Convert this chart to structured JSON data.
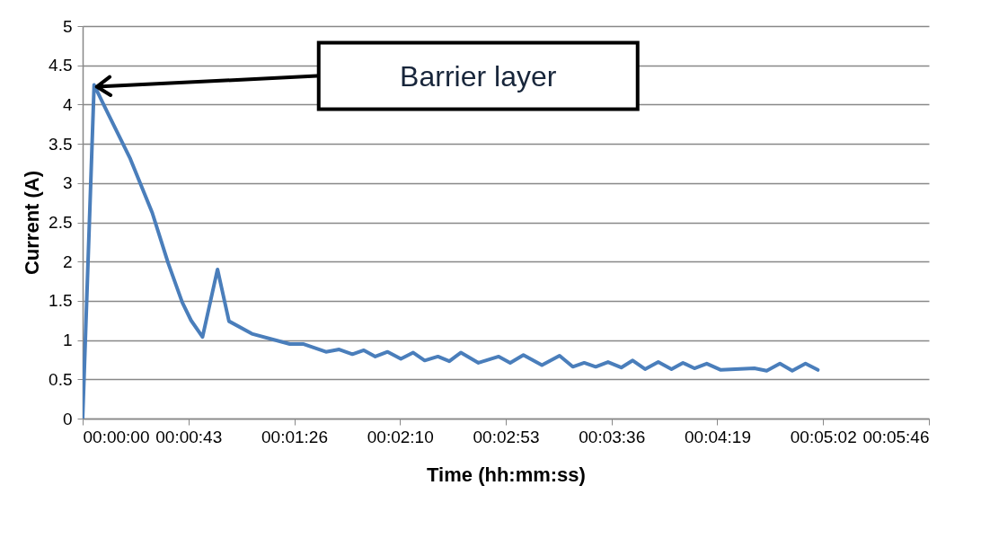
{
  "chart_data": {
    "type": "line",
    "xlabel": "Time  (hh:mm:ss)",
    "ylabel": "Current (A)",
    "x": [
      0,
      0.0013,
      0.0029,
      0.0054,
      0.0079,
      0.0097,
      0.0113,
      0.0123,
      0.0136,
      0.0153,
      0.0166,
      0.0192,
      0.0235,
      0.025,
      0.0276,
      0.0291,
      0.0306,
      0.0319,
      0.0332,
      0.0346,
      0.0361,
      0.0375,
      0.0388,
      0.0403,
      0.0416,
      0.0429,
      0.0449,
      0.0472,
      0.0485,
      0.05,
      0.0521,
      0.0541,
      0.0556,
      0.0569,
      0.0582,
      0.0596,
      0.0611,
      0.0624,
      0.0638,
      0.0653,
      0.0668,
      0.0681,
      0.0694,
      0.0708,
      0.0724,
      0.0762,
      0.0776,
      0.0791,
      0.0805,
      0.082,
      0.0834
    ],
    "series": [
      {
        "color": "#4a7ebb",
        "values": [
          0,
          4.25,
          3.88,
          3.31,
          2.62,
          1.98,
          1.48,
          1.25,
          1.04,
          1.9,
          1.24,
          1.08,
          0.95,
          0.95,
          0.85,
          0.88,
          0.82,
          0.87,
          0.79,
          0.85,
          0.76,
          0.84,
          0.74,
          0.79,
          0.73,
          0.84,
          0.71,
          0.79,
          0.71,
          0.81,
          0.68,
          0.8,
          0.66,
          0.71,
          0.66,
          0.72,
          0.65,
          0.74,
          0.63,
          0.72,
          0.63,
          0.71,
          0.64,
          0.7,
          0.62,
          0.64,
          0.61,
          0.7,
          0.61,
          0.7,
          0.62
        ]
      }
    ],
    "xlim": [
      0,
      0.096
    ],
    "xticks": [
      {
        "value": 0,
        "label": "00:00:00"
      },
      {
        "value": 0.012,
        "label": "00:00:43"
      },
      {
        "value": 0.024,
        "label": "00:01:26"
      },
      {
        "value": 0.036,
        "label": "00:02:10"
      },
      {
        "value": 0.048,
        "label": "00:02:53"
      },
      {
        "value": 0.06,
        "label": "00:03:36"
      },
      {
        "value": 0.072,
        "label": "00:04:19"
      },
      {
        "value": 0.084,
        "label": "00:05:02"
      },
      {
        "value": 0.096,
        "label": "00:05:46"
      }
    ],
    "ylim": [
      0,
      5
    ],
    "yticks": [
      0,
      0.5,
      1,
      1.5,
      2,
      2.5,
      3,
      3.5,
      4,
      4.5,
      5
    ],
    "grid": "y",
    "marker": "none",
    "line_style": "solid",
    "annotations": [
      "Barrier layer"
    ]
  }
}
